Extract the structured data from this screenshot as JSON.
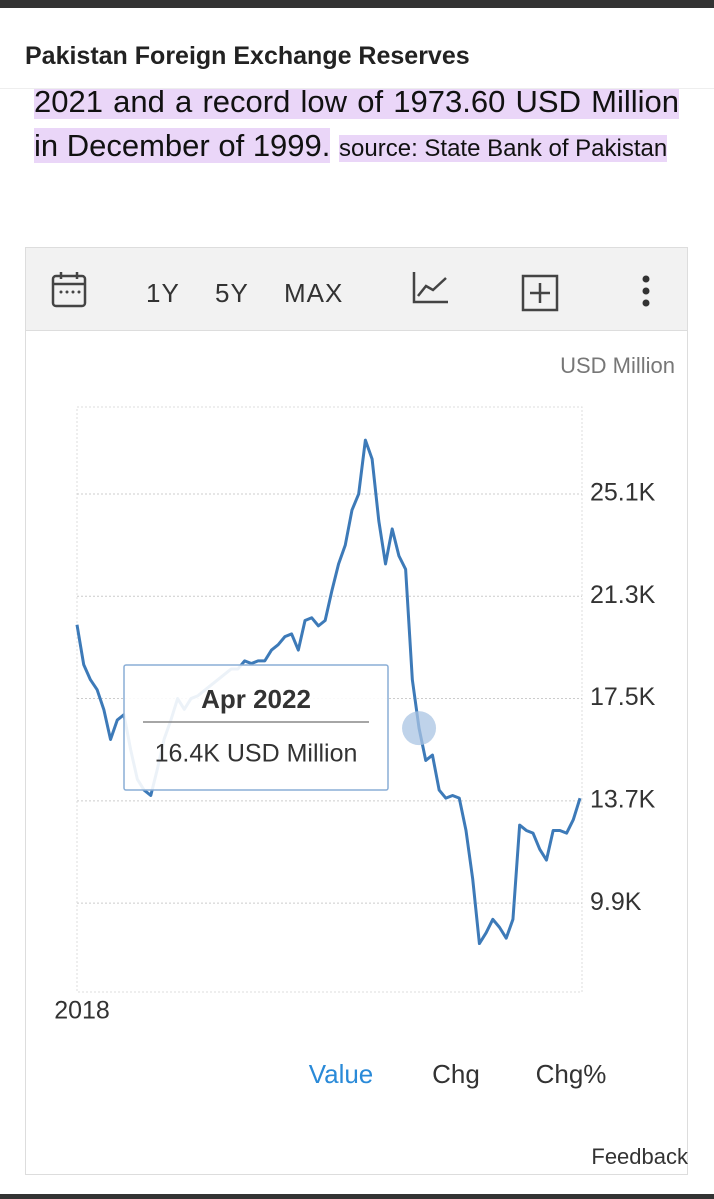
{
  "header": {
    "title": "Pakistan Foreign Exchange Reserves"
  },
  "description": {
    "text": "2021 and a record low of 1973.60 USD Million in December of 1999.",
    "source": "source: State Bank of Pakistan"
  },
  "toolbar": {
    "ranges": [
      "1Y",
      "5Y",
      "MAX"
    ]
  },
  "chart_data": {
    "type": "line",
    "unit": "USD Million",
    "categories": [
      "2018",
      null,
      null,
      null,
      null,
      null,
      null,
      null,
      null,
      null,
      null,
      null,
      null,
      null,
      null,
      null,
      null,
      null,
      null,
      null,
      null,
      null,
      null,
      null,
      null,
      null,
      null,
      null,
      null,
      null,
      null,
      null,
      null,
      null,
      null,
      null,
      null,
      null,
      null,
      null,
      null,
      null,
      null,
      null,
      null,
      null,
      null,
      null,
      null,
      null,
      null,
      null,
      null,
      null,
      null,
      null,
      null,
      null,
      null,
      null,
      null,
      null,
      null,
      null,
      null,
      null,
      null,
      null,
      null,
      null,
      null,
      null,
      null,
      null,
      null,
      null
    ],
    "series": [
      {
        "name": "Value",
        "color": "#3d7ab8",
        "values": [
          20240,
          18760,
          18200,
          17830,
          17090,
          15980,
          16700,
          16900,
          15600,
          14500,
          14100,
          13900,
          14900,
          16000,
          16700,
          17500,
          17100,
          17500,
          17600,
          17800,
          18000,
          18200,
          18400,
          18600,
          18600,
          18900,
          18800,
          18900,
          18900,
          19300,
          19500,
          19800,
          19900,
          19300,
          20400,
          20500,
          20200,
          20400,
          21500,
          22500,
          23200,
          24500,
          25100,
          27100,
          26400,
          24100,
          22500,
          23800,
          22800,
          22300,
          18200,
          16400,
          15200,
          15400,
          14100,
          13800,
          13900,
          13800,
          12600,
          10800,
          8400,
          8800,
          9300,
          9000,
          8600,
          9300,
          12800,
          12600,
          12500,
          11900,
          11500,
          12600,
          12600,
          12500,
          13000,
          13800
        ]
      }
    ],
    "ylim": [
      6600,
      28330
    ],
    "yticks": [
      {
        "value": 9900,
        "label": "9.9K"
      },
      {
        "value": 13700,
        "label": "13.7K"
      },
      {
        "value": 17500,
        "label": "17.5K"
      },
      {
        "value": 21300,
        "label": "21.3K"
      },
      {
        "value": 25100,
        "label": "25.1K"
      }
    ],
    "grid": true,
    "tooltip": {
      "title": "Apr 2022",
      "label": "16.4K USD Million"
    }
  },
  "tabs": [
    "Value",
    "Chg",
    "Chg%"
  ],
  "feedback": "Feedback"
}
